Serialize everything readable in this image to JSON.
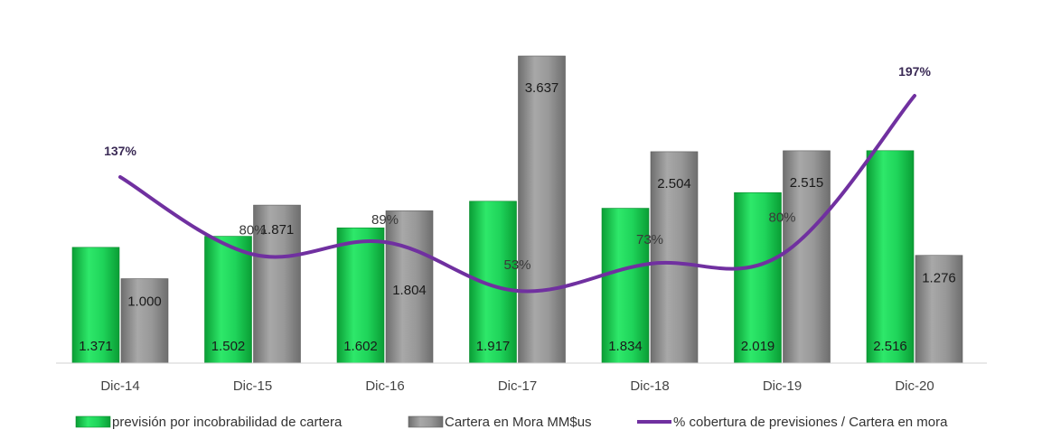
{
  "chart_data": {
    "type": "bar",
    "categories": [
      "Dic-14",
      "Dic-15",
      "Dic-16",
      "Dic-17",
      "Dic-18",
      "Dic-19",
      "Dic-20"
    ],
    "series": [
      {
        "name": "previsión por incobrabilidad de cartera",
        "kind": "bar",
        "color": "#12c24a",
        "values": [
          1371,
          1502,
          1602,
          1917,
          1834,
          2019,
          2516
        ],
        "labels": [
          "1.371",
          "1.502",
          "1.602",
          "1.917",
          "1.834",
          "2.019",
          "2.516"
        ]
      },
      {
        "name": "Cartera en Mora MM$us",
        "kind": "bar",
        "color": "#8c8c8c",
        "values": [
          1000,
          1871,
          1804,
          3637,
          2504,
          2515,
          1276
        ],
        "labels": [
          "1.000",
          "1.871",
          "1.804",
          "3.637",
          "2.504",
          "2.515",
          "1.276"
        ]
      },
      {
        "name": "% cobertura de previsiones / Cartera en mora",
        "kind": "line",
        "color": "#7030a0",
        "values": [
          137,
          80,
          89,
          53,
          73,
          80,
          197
        ],
        "labels": [
          "137%",
          "80%",
          "89%",
          "53%",
          "73%",
          "80%",
          "197%"
        ]
      }
    ],
    "legend_position": "bottom",
    "grid": false
  }
}
